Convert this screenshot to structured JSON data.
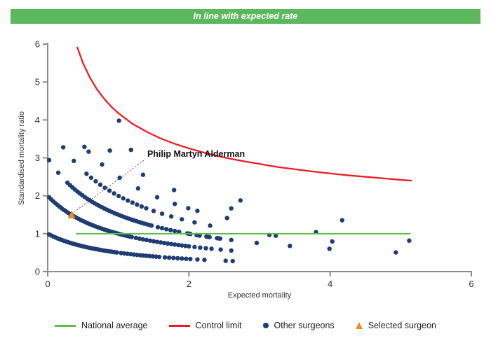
{
  "banner": {
    "text": "In line with expected rate"
  },
  "colors": {
    "banner_bg": "#5cb85c",
    "national_average": "#5dbc46",
    "control_limit": "#ed1c24",
    "other_surgeons": "#1f3c73",
    "selected_surgeon": "#f08c28",
    "selected_surgeon_edge": "#c9671a",
    "axis": "#8c8c8c",
    "tick_text": "#333333",
    "annotation_text": "#111111",
    "annotation_line": "#444444"
  },
  "chart_data": {
    "type": "scatter",
    "title": "In line with expected rate",
    "xlabel": "Expected mortality",
    "ylabel": "Standardised mortality ratio",
    "xlim": [
      0,
      6
    ],
    "ylim": [
      0,
      6
    ],
    "x_ticks": [
      0,
      2,
      4,
      6
    ],
    "y_ticks": [
      0,
      1,
      2,
      3,
      4,
      5,
      6
    ],
    "grid": false,
    "legend_position": "bottom",
    "national_average": {
      "y": 1,
      "x_start": 0.4,
      "x_end": 5.14
    },
    "control_limit": {
      "points": [
        [
          0.42,
          5.91
        ],
        [
          0.5,
          5.5
        ],
        [
          0.6,
          5.11
        ],
        [
          0.7,
          4.8
        ],
        [
          0.8,
          4.56
        ],
        [
          0.9,
          4.35
        ],
        [
          1.0,
          4.18
        ],
        [
          1.2,
          3.9
        ],
        [
          1.4,
          3.69
        ],
        [
          1.6,
          3.51
        ],
        [
          1.8,
          3.37
        ],
        [
          2.0,
          3.25
        ],
        [
          2.25,
          3.12
        ],
        [
          2.5,
          3.01
        ],
        [
          2.75,
          2.92
        ],
        [
          3.0,
          2.84
        ],
        [
          3.25,
          2.76
        ],
        [
          3.5,
          2.7
        ],
        [
          3.75,
          2.64
        ],
        [
          4.0,
          2.59
        ],
        [
          4.25,
          2.54
        ],
        [
          4.5,
          2.5
        ],
        [
          4.75,
          2.46
        ],
        [
          5.0,
          2.42
        ],
        [
          5.15,
          2.4
        ]
      ]
    },
    "other_surgeons": {
      "smr_model": "smr = deaths / (1 + expected_mortality)",
      "marker_radius": 3.2,
      "bands": [
        {
          "deaths": 1,
          "runs": [
            [
              0.02,
              1.0,
              0.03
            ],
            [
              1.04,
              1.6,
              0.045
            ],
            [
              1.66,
              2.02,
              0.06
            ]
          ],
          "clusters": [],
          "extra_x": [
            2.12,
            2.22,
            2.52,
            2.62
          ]
        },
        {
          "deaths": 2,
          "runs": [
            [
              0.02,
              1.2,
              0.03
            ],
            [
              1.25,
              2.0,
              0.05
            ],
            [
              2.08,
              2.32,
              0.08
            ]
          ],
          "clusters": [],
          "extra_x": [
            2.45,
            2.6
          ]
        },
        {
          "deaths": 3,
          "runs": [
            [
              0.28,
              1.5,
              0.035
            ],
            [
              1.56,
              1.9,
              0.06
            ]
          ],
          "clusters": [
            2.0,
            2.13,
            2.27,
            2.42
          ],
          "extra_x": [
            0.02,
            0.15,
            2.6,
            2.96,
            3.43,
            3.99,
            4.93
          ]
        },
        {
          "deaths": 4,
          "runs": [
            [
              0.55,
              1.4,
              0.065
            ]
          ],
          "clusters": [],
          "extra_x": [
            0.22,
            0.37,
            1.5,
            1.62,
            1.75,
            1.9,
            2.08,
            2.3,
            3.14,
            3.23,
            4.03
          ]
        },
        {
          "deaths": 5,
          "runs": [],
          "clusters": [],
          "extra_x": [
            0.52,
            0.58,
            0.77,
            1.02,
            1.28,
            1.55,
            1.8,
            1.99,
            2.12,
            2.54,
            3.8,
            5.12
          ]
        },
        {
          "deaths": 6,
          "runs": [],
          "clusters": [],
          "extra_x": [
            0.88,
            1.35,
            1.79,
            2.6
          ]
        },
        {
          "deaths": 7,
          "runs": [],
          "clusters": [],
          "extra_x": [
            1.18,
            2.73,
            4.17
          ]
        },
        {
          "deaths": 8,
          "runs": [],
          "clusters": [],
          "extra_x": [
            1.01
          ]
        }
      ]
    },
    "selected_surgeon": {
      "name": "Philip Martyn Alderman",
      "x": 0.34,
      "y": 1.49
    },
    "annotation": {
      "text_x": 1.41,
      "text_y": 3.03,
      "leader_from": [
        1.36,
        2.93
      ],
      "leader_to": [
        0.38,
        1.58
      ]
    }
  },
  "legend": {
    "items": [
      {
        "label": "National average",
        "marker": "line",
        "color_key": "national_average"
      },
      {
        "label": "Control limit",
        "marker": "line",
        "color_key": "control_limit"
      },
      {
        "label": "Other surgeons",
        "marker": "dot",
        "color_key": "other_surgeons"
      },
      {
        "label": "Selected surgeon",
        "marker": "triangle",
        "color_key": "selected_surgeon"
      }
    ]
  }
}
